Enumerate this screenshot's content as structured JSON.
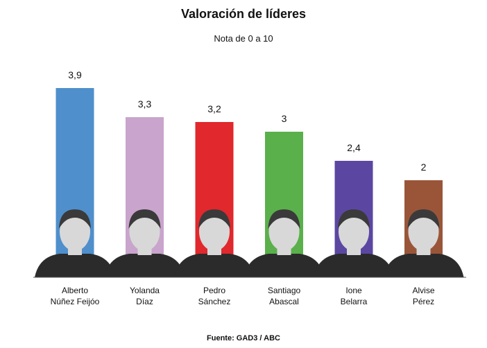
{
  "title": "Valoración de líderes",
  "subtitle": "Nota de 0 a 10",
  "source": "Fuente: GAD3 / ABC",
  "chart_data": {
    "type": "bar",
    "title": "Valoración de líderes",
    "subtitle": "Nota de 0 a 10",
    "ylim": [
      0,
      4
    ],
    "grid": false,
    "categories": [
      [
        "Alberto",
        "Núñez Feijóo"
      ],
      [
        "Yolanda",
        "Díaz"
      ],
      [
        "Pedro",
        "Sánchez"
      ],
      [
        "Santiago",
        "Abascal"
      ],
      [
        "Ione",
        "Belarra"
      ],
      [
        "Alvise",
        "Pérez"
      ]
    ],
    "values": [
      3.9,
      3.3,
      3.2,
      3,
      2.4,
      2
    ],
    "value_labels": [
      "3,9",
      "3,3",
      "3,2",
      "3",
      "2,4",
      "2"
    ],
    "colors": [
      "#4f8fcc",
      "#c9a4cc",
      "#e0282d",
      "#5ab04b",
      "#5b47a2",
      "#9a5539"
    ],
    "photo_skin": "#d8d8d8",
    "photo_hair": "#3a3a3a",
    "photo_suit": "#2b2b2b"
  }
}
